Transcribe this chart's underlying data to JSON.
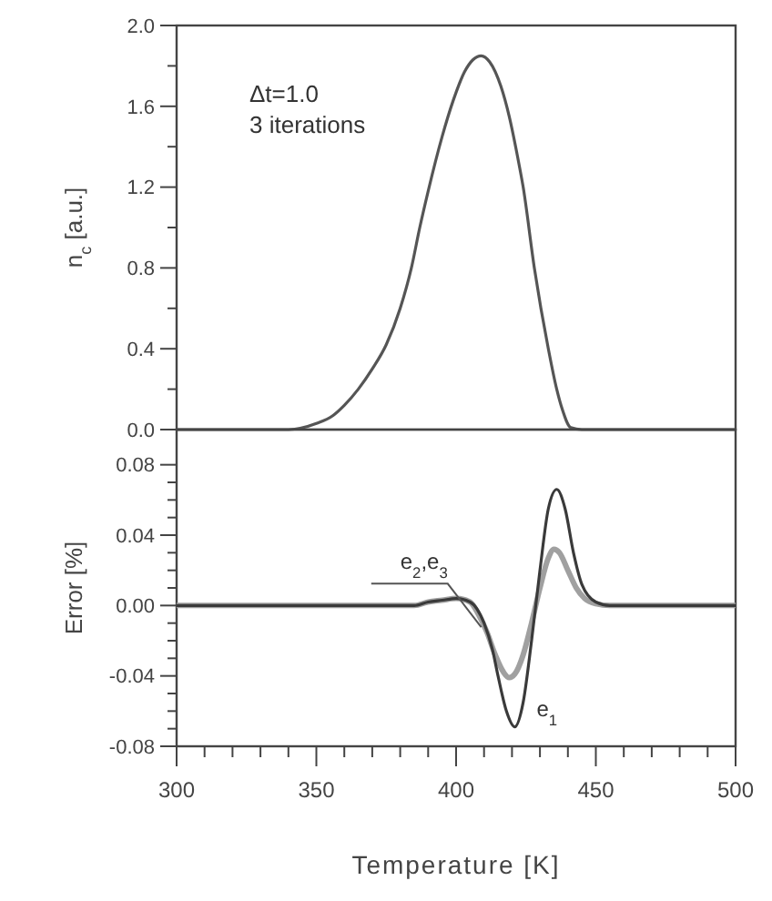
{
  "chart_data": [
    {
      "type": "line",
      "ylabel": "n$_{c}$ [a.u.]",
      "annotations": [
        "Δt=1.0",
        "3 iterations"
      ],
      "xlim": [
        300,
        500
      ],
      "ylim": [
        0,
        2.0
      ],
      "yticks": [
        {
          "value": 0,
          "label": "0.0"
        },
        {
          "value": 0.2,
          "label": null
        },
        {
          "value": 0.4,
          "label": "0.4"
        },
        {
          "value": 0.6,
          "label": null
        },
        {
          "value": 0.8,
          "label": "0.8"
        },
        {
          "value": 1.0,
          "label": null
        },
        {
          "value": 1.2,
          "label": "1.2"
        },
        {
          "value": 1.4,
          "label": null
        },
        {
          "value": 1.6,
          "label": "1.6"
        },
        {
          "value": 1.8,
          "label": null
        },
        {
          "value": 2.0,
          "label": "2.0"
        }
      ],
      "tick_labels": "y",
      "grid": false,
      "series": [
        {
          "color": "#555555",
          "x": [
            300,
            330,
            340,
            350,
            356,
            360,
            365,
            370,
            375,
            380,
            384,
            387,
            390,
            395,
            399,
            403,
            406,
            409,
            412,
            416,
            419,
            422,
            424,
            428,
            433,
            436,
            438,
            441,
            445,
            500
          ],
          "values": [
            0,
            0,
            0,
            0.03,
            0.07,
            0.12,
            0.2,
            0.3,
            0.42,
            0.6,
            0.8,
            1.0,
            1.18,
            1.45,
            1.63,
            1.77,
            1.83,
            1.85,
            1.82,
            1.7,
            1.55,
            1.35,
            1.2,
            0.8,
            0.4,
            0.2,
            0.1,
            0.01,
            0,
            0
          ]
        }
      ]
    },
    {
      "type": "line",
      "xlabel": "Temperature [K]",
      "ylabel": "Error [%]",
      "xlim": [
        300,
        500
      ],
      "xticks": [
        300,
        {
          "value": 310,
          "label": null
        },
        {
          "value": 320,
          "label": null
        },
        {
          "value": 330,
          "label": null
        },
        {
          "value": 340,
          "label": null
        },
        350,
        {
          "value": 360,
          "label": null
        },
        {
          "value": 370,
          "label": null
        },
        {
          "value": 380,
          "label": null
        },
        {
          "value": 390,
          "label": null
        },
        400,
        {
          "value": 410,
          "label": null
        },
        {
          "value": 420,
          "label": null
        },
        {
          "value": 430,
          "label": null
        },
        {
          "value": 440,
          "label": null
        },
        450,
        {
          "value": 460,
          "label": null
        },
        {
          "value": 470,
          "label": null
        },
        {
          "value": 480,
          "label": null
        },
        {
          "value": 490,
          "label": null
        },
        500
      ],
      "ylim": [
        -0.08,
        0.1
      ],
      "yticks": [
        {
          "value": -0.08,
          "label": "-0.08"
        },
        {
          "value": -0.07,
          "label": null
        },
        {
          "value": -0.06,
          "label": null
        },
        {
          "value": -0.05,
          "label": null
        },
        {
          "value": -0.04,
          "label": "-0.04"
        },
        {
          "value": -0.03,
          "label": null
        },
        {
          "value": -0.02,
          "label": null
        },
        {
          "value": -0.01,
          "label": null
        },
        {
          "value": 0,
          "label": "0.00"
        },
        {
          "value": 0.01,
          "label": null
        },
        {
          "value": 0.02,
          "label": null
        },
        {
          "value": 0.03,
          "label": null
        },
        {
          "value": 0.04,
          "label": "0.04"
        },
        {
          "value": 0.05,
          "label": null
        },
        {
          "value": 0.06,
          "label": null
        },
        {
          "value": 0.07,
          "label": null
        },
        {
          "value": 0.08,
          "label": "0.08"
        }
      ],
      "grid": false,
      "series": [
        {
          "name": "e$_{2}$,e$_{3}$",
          "color": "#a0a0a0",
          "x": [
            300,
            385,
            390,
            395,
            400,
            405,
            408,
            411,
            414,
            417,
            419,
            421,
            424,
            427,
            430,
            433,
            435,
            437,
            440,
            443,
            446,
            450,
            455,
            500
          ],
          "values": [
            0,
            0,
            0.002,
            0.003,
            0.004,
            0.002,
            -0.005,
            -0.015,
            -0.028,
            -0.038,
            -0.041,
            -0.039,
            -0.028,
            -0.01,
            0.01,
            0.027,
            0.032,
            0.03,
            0.02,
            0.01,
            0.004,
            0.001,
            0,
            0
          ]
        },
        {
          "name": "e$_{1}$",
          "color": "#3a3a3a",
          "x": [
            300,
            385,
            390,
            395,
            400,
            405,
            410,
            413,
            415,
            418,
            421,
            424,
            427,
            430,
            433,
            436,
            439,
            442,
            445,
            450,
            455,
            500
          ],
          "values": [
            0,
            0,
            0.002,
            0.003,
            0.004,
            0.002,
            -0.01,
            -0.025,
            -0.04,
            -0.06,
            -0.069,
            -0.055,
            -0.02,
            0.02,
            0.055,
            0.066,
            0.055,
            0.03,
            0.012,
            0.002,
            0,
            0
          ]
        }
      ]
    }
  ]
}
